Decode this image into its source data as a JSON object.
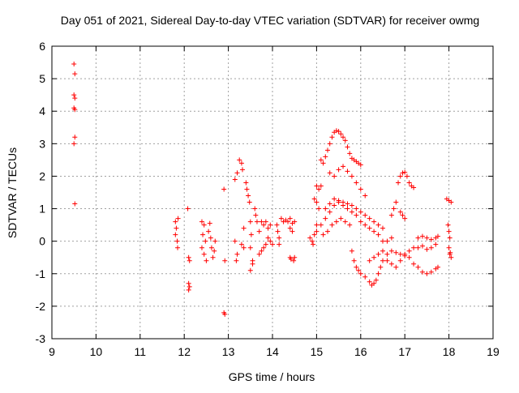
{
  "colors": {
    "background": "#ffffff",
    "grid": "#a0a0a0",
    "frame": "#000000",
    "series": "#ff0000"
  },
  "chart_data": {
    "type": "scatter",
    "title": "Day 051 of 2021, Sidereal Day-to-day VTEC variation (SDTVAR) for receiver owmg",
    "xlabel": "GPS time / hours",
    "ylabel": "SDTVAR / TECUs",
    "xlim": [
      9,
      19
    ],
    "ylim": [
      -3,
      6
    ],
    "xticks": [
      "9",
      "10",
      "11",
      "12",
      "13",
      "14",
      "15",
      "16",
      "17",
      "18",
      "19"
    ],
    "yticks": [
      "-3",
      "-2",
      "-1",
      "0",
      "1",
      "2",
      "3",
      "4",
      "5",
      "6"
    ],
    "grid": true,
    "marker": "+",
    "series": [
      {
        "name": "SDTVAR",
        "points": [
          [
            9.5,
            5.45
          ],
          [
            9.52,
            5.15
          ],
          [
            9.5,
            4.5
          ],
          [
            9.52,
            4.4
          ],
          [
            9.5,
            4.1
          ],
          [
            9.52,
            4.05
          ],
          [
            9.52,
            3.2
          ],
          [
            9.5,
            3.0
          ],
          [
            9.52,
            1.15
          ],
          [
            11.8,
            0.6
          ],
          [
            11.82,
            0.4
          ],
          [
            11.8,
            0.2
          ],
          [
            11.84,
            0.0
          ],
          [
            11.85,
            -0.2
          ],
          [
            11.86,
            0.7
          ],
          [
            12.08,
            1.0
          ],
          [
            12.1,
            -0.5
          ],
          [
            12.12,
            -0.6
          ],
          [
            12.1,
            -1.3
          ],
          [
            12.12,
            -1.4
          ],
          [
            12.1,
            -1.5
          ],
          [
            12.4,
            0.6
          ],
          [
            12.45,
            0.5
          ],
          [
            12.42,
            0.2
          ],
          [
            12.48,
            0.0
          ],
          [
            12.4,
            -0.2
          ],
          [
            12.45,
            -0.4
          ],
          [
            12.5,
            -0.6
          ],
          [
            12.55,
            0.3
          ],
          [
            12.6,
            0.1
          ],
          [
            12.62,
            -0.2
          ],
          [
            12.65,
            -0.5
          ],
          [
            12.58,
            0.55
          ],
          [
            12.7,
            0.0
          ],
          [
            12.68,
            -0.3
          ],
          [
            12.9,
            1.6
          ],
          [
            12.92,
            -0.6
          ],
          [
            12.9,
            -2.2
          ],
          [
            12.92,
            -2.25
          ],
          [
            13.15,
            0.0
          ],
          [
            13.2,
            -0.4
          ],
          [
            13.18,
            -0.6
          ],
          [
            13.15,
            1.9
          ],
          [
            13.2,
            2.1
          ],
          [
            13.25,
            2.5
          ],
          [
            13.3,
            2.4
          ],
          [
            13.32,
            2.2
          ],
          [
            13.35,
            0.4
          ],
          [
            13.3,
            -0.1
          ],
          [
            13.35,
            -0.2
          ],
          [
            13.4,
            1.8
          ],
          [
            13.42,
            1.6
          ],
          [
            13.45,
            1.4
          ],
          [
            13.48,
            1.2
          ],
          [
            13.5,
            0.6
          ],
          [
            13.52,
            0.2
          ],
          [
            13.5,
            -0.2
          ],
          [
            13.55,
            -0.6
          ],
          [
            13.5,
            -0.9
          ],
          [
            13.55,
            -0.7
          ],
          [
            13.6,
            1.0
          ],
          [
            13.62,
            0.8
          ],
          [
            13.65,
            0.6
          ],
          [
            13.7,
            0.3
          ],
          [
            13.7,
            -0.4
          ],
          [
            13.75,
            -0.3
          ],
          [
            13.8,
            -0.2
          ],
          [
            13.85,
            -0.1
          ],
          [
            13.75,
            0.6
          ],
          [
            13.8,
            0.5
          ],
          [
            13.85,
            0.6
          ],
          [
            13.9,
            0.4
          ],
          [
            13.95,
            0.5
          ],
          [
            13.95,
            0.0
          ],
          [
            13.9,
            0.1
          ],
          [
            14.0,
            -0.1
          ],
          [
            14.1,
            0.5
          ],
          [
            14.12,
            0.3
          ],
          [
            14.15,
            0.1
          ],
          [
            14.15,
            -0.1
          ],
          [
            14.2,
            0.7
          ],
          [
            14.25,
            0.6
          ],
          [
            14.3,
            0.65
          ],
          [
            14.35,
            0.6
          ],
          [
            14.4,
            0.7
          ],
          [
            14.4,
            0.4
          ],
          [
            14.45,
            0.55
          ],
          [
            14.45,
            0.3
          ],
          [
            14.5,
            0.6
          ],
          [
            14.4,
            -0.5
          ],
          [
            14.42,
            -0.55
          ],
          [
            14.48,
            -0.6
          ],
          [
            14.5,
            -0.5
          ],
          [
            14.85,
            0.1
          ],
          [
            14.9,
            0.0
          ],
          [
            14.92,
            -0.1
          ],
          [
            14.95,
            0.2
          ],
          [
            15.0,
            0.5
          ],
          [
            15.0,
            0.3
          ],
          [
            14.95,
            1.3
          ],
          [
            15.0,
            1.2
          ],
          [
            15.05,
            1.0
          ],
          [
            15.0,
            1.7
          ],
          [
            15.05,
            1.6
          ],
          [
            15.1,
            1.7
          ],
          [
            15.1,
            2.5
          ],
          [
            15.15,
            2.4
          ],
          [
            15.2,
            2.6
          ],
          [
            15.25,
            2.8
          ],
          [
            15.3,
            3.0
          ],
          [
            15.35,
            3.2
          ],
          [
            15.4,
            3.35
          ],
          [
            15.45,
            3.4
          ],
          [
            15.5,
            3.38
          ],
          [
            15.55,
            3.3
          ],
          [
            15.6,
            3.2
          ],
          [
            15.65,
            3.1
          ],
          [
            15.7,
            2.9
          ],
          [
            15.75,
            2.7
          ],
          [
            15.8,
            2.55
          ],
          [
            15.85,
            2.5
          ],
          [
            15.9,
            2.45
          ],
          [
            15.95,
            2.4
          ],
          [
            16.0,
            2.35
          ],
          [
            15.3,
            2.1
          ],
          [
            15.4,
            2.0
          ],
          [
            15.5,
            2.2
          ],
          [
            15.6,
            2.3
          ],
          [
            15.7,
            2.15
          ],
          [
            15.8,
            2.0
          ],
          [
            15.9,
            1.8
          ],
          [
            16.0,
            1.6
          ],
          [
            16.1,
            1.4
          ],
          [
            15.1,
            0.5
          ],
          [
            15.2,
            0.7
          ],
          [
            15.3,
            0.9
          ],
          [
            15.4,
            1.1
          ],
          [
            15.5,
            1.2
          ],
          [
            15.6,
            1.1
          ],
          [
            15.7,
            1.0
          ],
          [
            15.8,
            0.9
          ],
          [
            15.9,
            0.8
          ],
          [
            16.0,
            0.6
          ],
          [
            16.1,
            0.5
          ],
          [
            16.2,
            0.4
          ],
          [
            16.3,
            0.3
          ],
          [
            16.4,
            0.2
          ],
          [
            16.5,
            0.0
          ],
          [
            15.2,
            1.0
          ],
          [
            15.3,
            1.15
          ],
          [
            15.4,
            1.3
          ],
          [
            15.5,
            1.25
          ],
          [
            15.6,
            1.2
          ],
          [
            15.7,
            1.15
          ],
          [
            15.8,
            1.1
          ],
          [
            15.9,
            1.0
          ],
          [
            16.0,
            0.9
          ],
          [
            16.1,
            0.8
          ],
          [
            16.2,
            0.7
          ],
          [
            16.3,
            0.6
          ],
          [
            16.4,
            0.5
          ],
          [
            16.5,
            0.4
          ],
          [
            15.15,
            0.2
          ],
          [
            15.25,
            0.3
          ],
          [
            15.35,
            0.5
          ],
          [
            15.45,
            0.6
          ],
          [
            15.55,
            0.7
          ],
          [
            15.65,
            0.6
          ],
          [
            15.75,
            0.5
          ],
          [
            15.8,
            -0.3
          ],
          [
            15.85,
            -0.6
          ],
          [
            15.9,
            -0.8
          ],
          [
            15.95,
            -0.9
          ],
          [
            16.0,
            -1.0
          ],
          [
            16.1,
            -1.1
          ],
          [
            16.2,
            -1.25
          ],
          [
            16.25,
            -1.35
          ],
          [
            16.3,
            -1.3
          ],
          [
            16.35,
            -1.2
          ],
          [
            16.4,
            -1.0
          ],
          [
            16.45,
            -0.8
          ],
          [
            16.5,
            -0.6
          ],
          [
            16.6,
            -0.4
          ],
          [
            16.7,
            -0.3
          ],
          [
            16.8,
            -0.35
          ],
          [
            16.9,
            -0.4
          ],
          [
            17.0,
            -0.45
          ],
          [
            17.1,
            -0.5
          ],
          [
            16.2,
            -0.6
          ],
          [
            16.3,
            -0.5
          ],
          [
            16.4,
            -0.4
          ],
          [
            16.5,
            -0.3
          ],
          [
            16.6,
            0.0
          ],
          [
            16.7,
            0.1
          ],
          [
            16.7,
            0.8
          ],
          [
            16.75,
            1.0
          ],
          [
            16.8,
            1.2
          ],
          [
            16.85,
            1.8
          ],
          [
            16.9,
            2.0
          ],
          [
            16.95,
            2.1
          ],
          [
            17.0,
            2.12
          ],
          [
            17.05,
            2.0
          ],
          [
            17.1,
            1.8
          ],
          [
            17.15,
            1.7
          ],
          [
            17.2,
            1.65
          ],
          [
            16.9,
            0.9
          ],
          [
            16.95,
            0.8
          ],
          [
            17.0,
            0.7
          ],
          [
            16.6,
            -0.6
          ],
          [
            16.7,
            -0.7
          ],
          [
            16.8,
            -0.8
          ],
          [
            16.9,
            -0.6
          ],
          [
            17.0,
            -0.4
          ],
          [
            17.1,
            -0.3
          ],
          [
            17.2,
            -0.2
          ],
          [
            17.2,
            -0.7
          ],
          [
            17.3,
            -0.8
          ],
          [
            17.4,
            -0.95
          ],
          [
            17.5,
            -1.0
          ],
          [
            17.6,
            -0.95
          ],
          [
            17.7,
            -0.85
          ],
          [
            17.75,
            -0.8
          ],
          [
            17.3,
            0.1
          ],
          [
            17.4,
            0.15
          ],
          [
            17.5,
            0.1
          ],
          [
            17.6,
            0.05
          ],
          [
            17.7,
            0.1
          ],
          [
            17.75,
            0.15
          ],
          [
            17.3,
            -0.2
          ],
          [
            17.4,
            -0.15
          ],
          [
            17.5,
            -0.25
          ],
          [
            17.6,
            -0.2
          ],
          [
            17.7,
            -0.1
          ],
          [
            17.95,
            1.3
          ],
          [
            18.0,
            1.25
          ],
          [
            18.05,
            1.2
          ],
          [
            17.98,
            0.5
          ],
          [
            18.0,
            0.3
          ],
          [
            18.02,
            0.1
          ],
          [
            18.0,
            -0.2
          ],
          [
            18.02,
            -0.4
          ],
          [
            18.05,
            -0.5
          ],
          [
            18.03,
            -0.35
          ]
        ]
      }
    ]
  }
}
